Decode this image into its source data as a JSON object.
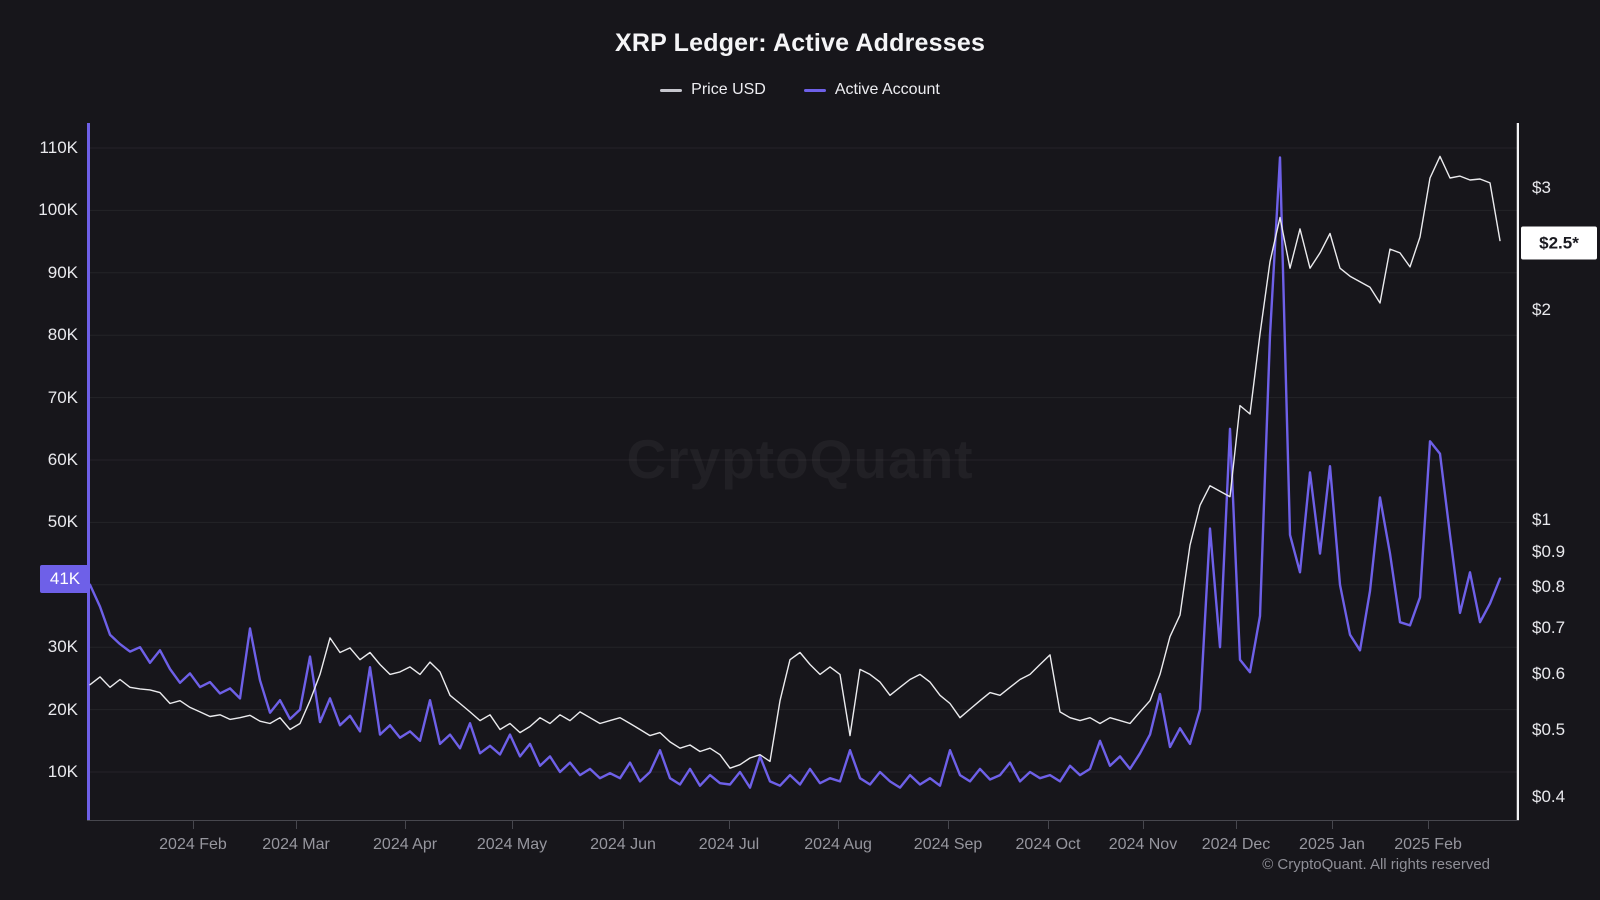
{
  "header": {
    "title": "XRP Ledger: Active Addresses"
  },
  "legend": [
    {
      "label": "Price USD",
      "color": "#c6c6cd"
    },
    {
      "label": "Active Account",
      "color": "#6e60e8"
    }
  ],
  "badges": {
    "active_account_last": "41K",
    "price_last": "$2.5*",
    "active_badge_bg": "#6e60e8",
    "price_badge_bg": "#ffffff",
    "price_badge_text": "#1a1a20"
  },
  "watermark": "CryptoQuant",
  "footer": "© CryptoQuant. All rights reserved",
  "axes": {
    "left_ticks": [
      {
        "label": "110K",
        "v": 110
      },
      {
        "label": "100K",
        "v": 100
      },
      {
        "label": "90K",
        "v": 90
      },
      {
        "label": "80K",
        "v": 80
      },
      {
        "label": "70K",
        "v": 70
      },
      {
        "label": "60K",
        "v": 60
      },
      {
        "label": "50K",
        "v": 50
      },
      {
        "label": "40K",
        "v": 40
      },
      {
        "label": "30K",
        "v": 30
      },
      {
        "label": "20K",
        "v": 20
      },
      {
        "label": "10K",
        "v": 10
      }
    ],
    "right_ticks": [
      {
        "label": "$3",
        "v": 3
      },
      {
        "label": "$2",
        "v": 2
      },
      {
        "label": "$1",
        "v": 1
      },
      {
        "label": "$0.9",
        "v": 0.9
      },
      {
        "label": "$0.8",
        "v": 0.8
      },
      {
        "label": "$0.7",
        "v": 0.7
      },
      {
        "label": "$0.6",
        "v": 0.6
      },
      {
        "label": "$0.5",
        "v": 0.5
      },
      {
        "label": "$0.4",
        "v": 0.4
      }
    ],
    "x_ticks": [
      {
        "label": "2024 Feb",
        "f": 0.074
      },
      {
        "label": "2024 Mar",
        "f": 0.146
      },
      {
        "label": "2024 Apr",
        "f": 0.2221
      },
      {
        "label": "2024 May",
        "f": 0.2968
      },
      {
        "label": "2024 Jun",
        "f": 0.3743
      },
      {
        "label": "2024 Jul",
        "f": 0.4483
      },
      {
        "label": "2024 Aug",
        "f": 0.5245
      },
      {
        "label": "2024 Sep",
        "f": 0.6013
      },
      {
        "label": "2024 Oct",
        "f": 0.6711
      },
      {
        "label": "2024 Nov",
        "f": 0.7374
      },
      {
        "label": "2024 Dec",
        "f": 0.8024
      },
      {
        "label": "2025 Jan",
        "f": 0.8694
      },
      {
        "label": "2025 Feb",
        "f": 0.9365
      }
    ]
  },
  "chart_data": {
    "type": "line",
    "title": "XRP Ledger: Active Addresses",
    "x_start": "2024-01-02",
    "x_end": "2025-02-12",
    "sampling": "uniform, ~3-day intervals, 142 points per series (values estimated from chart)",
    "grid": "horizontal, every 10K of left axis",
    "legend_position": "top-center",
    "series": [
      {
        "name": "Price USD",
        "axis": "right",
        "unit": "USD",
        "scale": "log",
        "axis_range": [
          0.37,
          3.7
        ],
        "last_value_label": "$2.5*",
        "color": "#ebebee",
        "values": [
          0.58,
          0.595,
          0.575,
          0.59,
          0.575,
          0.572,
          0.57,
          0.565,
          0.545,
          0.55,
          0.538,
          0.53,
          0.522,
          0.525,
          0.517,
          0.52,
          0.524,
          0.514,
          0.51,
          0.52,
          0.5,
          0.51,
          0.55,
          0.6,
          0.677,
          0.645,
          0.655,
          0.63,
          0.645,
          0.62,
          0.6,
          0.605,
          0.615,
          0.6,
          0.625,
          0.605,
          0.56,
          0.545,
          0.53,
          0.515,
          0.525,
          0.5,
          0.51,
          0.495,
          0.505,
          0.52,
          0.51,
          0.525,
          0.515,
          0.53,
          0.52,
          0.51,
          0.515,
          0.52,
          0.51,
          0.5,
          0.49,
          0.495,
          0.48,
          0.47,
          0.475,
          0.465,
          0.47,
          0.46,
          0.44,
          0.445,
          0.455,
          0.46,
          0.45,
          0.55,
          0.63,
          0.645,
          0.62,
          0.6,
          0.615,
          0.6,
          0.49,
          0.61,
          0.6,
          0.585,
          0.56,
          0.575,
          0.59,
          0.6,
          0.585,
          0.56,
          0.545,
          0.52,
          0.535,
          0.55,
          0.565,
          0.56,
          0.575,
          0.59,
          0.6,
          0.62,
          0.64,
          0.53,
          0.52,
          0.515,
          0.52,
          0.51,
          0.52,
          0.515,
          0.51,
          0.53,
          0.55,
          0.6,
          0.68,
          0.73,
          0.92,
          1.05,
          1.12,
          1.1,
          1.08,
          1.46,
          1.42,
          1.85,
          2.35,
          2.72,
          2.3,
          2.62,
          2.3,
          2.42,
          2.58,
          2.3,
          2.24,
          2.2,
          2.16,
          2.05,
          2.45,
          2.42,
          2.31,
          2.55,
          3.1,
          3.33,
          3.1,
          3.12,
          3.08,
          3.09,
          3.05,
          2.52
        ]
      },
      {
        "name": "Active Account",
        "axis": "left",
        "unit": "addresses",
        "value_unit": "thousands",
        "scale": "linear",
        "axis_range_k": [
          0,
          114
        ],
        "last_value_label": "41K",
        "color": "#6e60e8",
        "values": [
          40,
          36.5,
          32,
          30.5,
          29.3,
          30,
          27.5,
          29.5,
          26.5,
          24.3,
          25.8,
          23.6,
          24.4,
          22.6,
          23.4,
          21.8,
          33,
          24.7,
          19.5,
          21.5,
          18.5,
          20,
          28.5,
          18,
          21.8,
          17.5,
          19,
          16.5,
          26.8,
          16,
          17.5,
          15.5,
          16.5,
          15,
          21.5,
          14.5,
          16,
          13.8,
          17.8,
          13,
          14.2,
          12.8,
          16,
          12.5,
          14.5,
          11,
          12.5,
          10,
          11.5,
          9.5,
          10.5,
          9,
          9.8,
          9,
          11.5,
          8.5,
          10,
          13.5,
          9,
          8,
          10.5,
          7.8,
          9.5,
          8.2,
          8,
          10,
          7.5,
          12.5,
          8.5,
          7.8,
          9.5,
          8,
          10.5,
          8.2,
          9,
          8.5,
          13.5,
          9,
          8,
          10,
          8.5,
          7.5,
          9.5,
          8,
          9,
          7.8,
          13.5,
          9.5,
          8.5,
          10.5,
          8.8,
          9.5,
          11.5,
          8.5,
          10,
          9,
          9.5,
          8.5,
          11,
          9.5,
          10.5,
          15,
          11,
          12.5,
          10.5,
          13,
          16,
          22.5,
          14,
          17,
          14.5,
          20,
          49,
          30,
          65,
          28,
          26,
          35,
          80,
          108.5,
          48,
          42,
          58,
          45,
          59,
          40,
          32,
          29.5,
          39,
          54,
          45,
          34,
          33.5,
          38,
          63,
          61,
          48,
          35.5,
          42,
          34,
          37,
          41
        ]
      }
    ]
  }
}
